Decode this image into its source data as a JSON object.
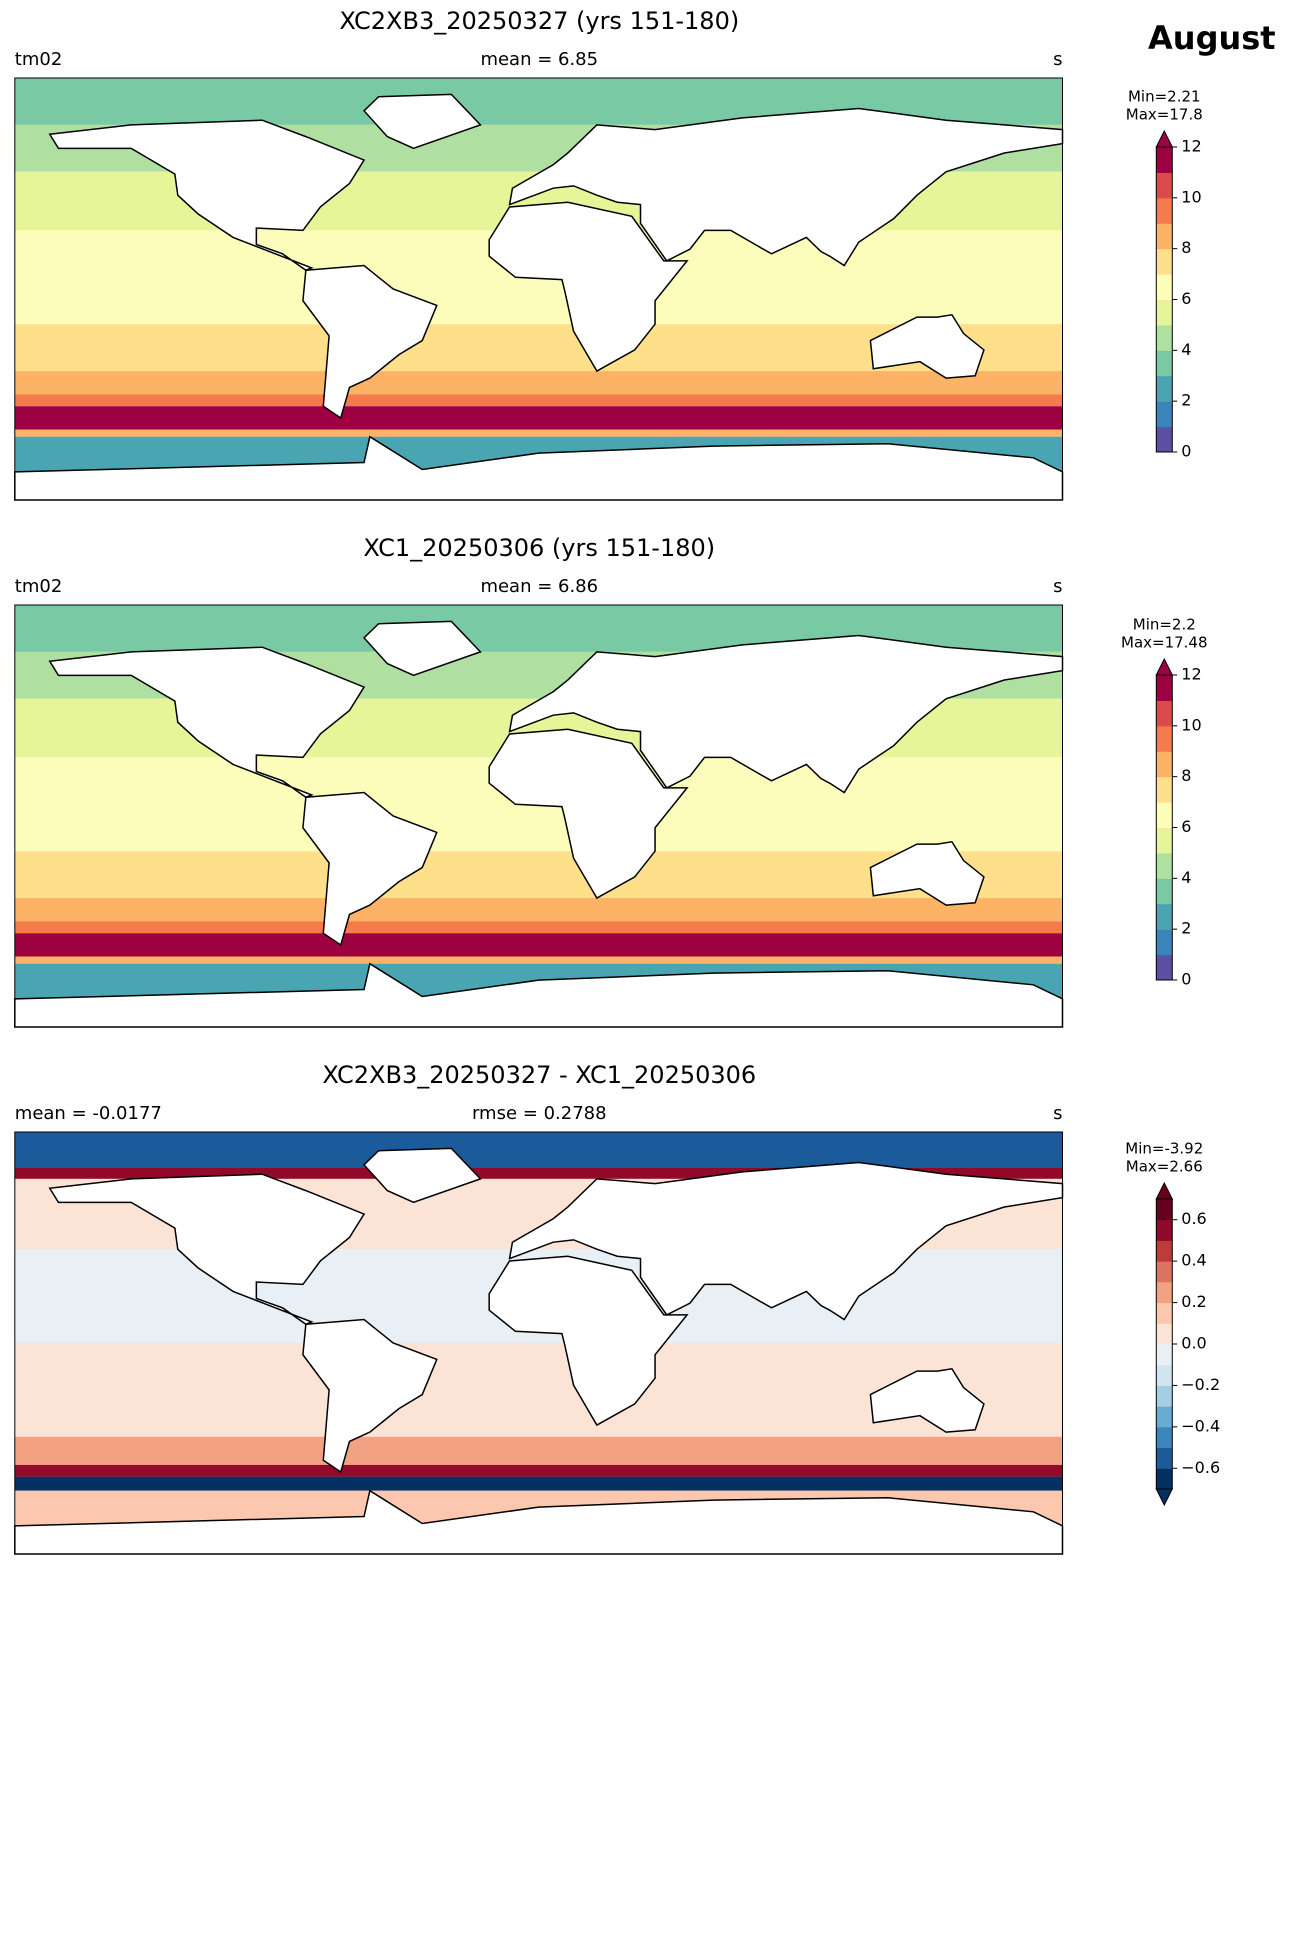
{
  "suptitle": "August",
  "panels": [
    {
      "title": "XC2XB3_20250327 (yrs 151-180)",
      "left": "tm02",
      "center": "mean = 6.85",
      "right": "s",
      "colorbar": {
        "min_label": "Min=2.21",
        "max_label": "Max=17.8",
        "lim": [
          0,
          12
        ],
        "extend": "max",
        "ticks": [
          0,
          2,
          4,
          6,
          8,
          10,
          12
        ],
        "colors": [
          "#5e4fa2",
          "#3c83bd",
          "#4aa5b2",
          "#79c9a4",
          "#b0dfa2",
          "#e6f598",
          "#fdfdbb",
          "#fee08b",
          "#fdb365",
          "#f67b4a",
          "#dd4a4c",
          "#9e0142"
        ]
      }
    },
    {
      "title": "XC1_20250306 (yrs 151-180)",
      "left": "tm02",
      "center": "mean = 6.86",
      "right": "s",
      "colorbar": {
        "min_label": "Min=2.2",
        "max_label": "Max=17.48",
        "lim": [
          0,
          12
        ],
        "extend": "max",
        "ticks": [
          0,
          2,
          4,
          6,
          8,
          10,
          12
        ],
        "colors": [
          "#5e4fa2",
          "#3c83bd",
          "#4aa5b2",
          "#79c9a4",
          "#b0dfa2",
          "#e6f598",
          "#fdfdbb",
          "#fee08b",
          "#fdb365",
          "#f67b4a",
          "#dd4a4c",
          "#9e0142"
        ]
      }
    },
    {
      "title": "XC2XB3_20250327 - XC1_20250306",
      "left": "mean = -0.0177",
      "center": "rmse = 0.2788",
      "right": "s",
      "colorbar": {
        "min_label": "Min=-3.92",
        "max_label": "Max=2.66",
        "lim": [
          -0.7,
          0.7
        ],
        "extend": "both",
        "ticks": [
          {
            "value": -0.6,
            "label": "−0.6"
          },
          {
            "value": -0.4,
            "label": "−0.4"
          },
          {
            "value": -0.2,
            "label": "−0.2"
          },
          {
            "value": 0,
            "label": "0.0"
          },
          0.2,
          0.4,
          0.6
        ],
        "colors": [
          "#053061",
          "#1b5a9b",
          "#3a87bd",
          "#6aacd0",
          "#a6cee3",
          "#d1e5f0",
          "#e8f0f5",
          "#fbe3d6",
          "#fbc8af",
          "#f2a283",
          "#dd7363",
          "#c0393b",
          "#92092a",
          "#67001f"
        ]
      }
    }
  ]
}
